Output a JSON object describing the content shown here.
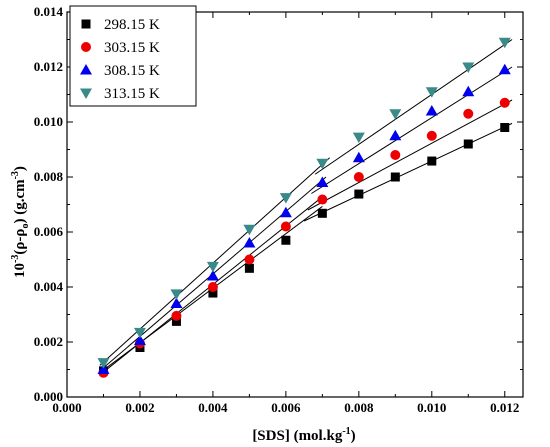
{
  "chart_data": {
    "type": "scatter",
    "xlabel": "[SDS] (mol.kg",
    "xlabel_sup": "-1",
    "xlabel_end": ")",
    "ylabel_pre": "10",
    "ylabel_sup": "-3",
    "ylabel_mid": "(ρ-ρ",
    "ylabel_sub": "o",
    "ylabel_post": ") (g.cm",
    "ylabel_sup2": "-3",
    "ylabel_end": ")",
    "xlim": [
      0.0,
      0.0125
    ],
    "ylim": [
      0.0,
      0.014
    ],
    "xticks": [
      "0.000",
      "0.002",
      "0.004",
      "0.006",
      "0.008",
      "0.010",
      "0.012"
    ],
    "xtick_values": [
      0.0,
      0.002,
      0.004,
      0.006,
      0.008,
      0.01,
      0.012
    ],
    "yticks": [
      "0.000",
      "0.002",
      "0.004",
      "0.006",
      "0.008",
      "0.010",
      "0.012",
      "0.014"
    ],
    "ytick_values": [
      0.0,
      0.002,
      0.004,
      0.006,
      0.008,
      0.01,
      0.012,
      0.014
    ],
    "grid": false,
    "legend_position": "top-left",
    "x": [
      0.001,
      0.002,
      0.003,
      0.004,
      0.005,
      0.006,
      0.007,
      0.008,
      0.009,
      0.01,
      0.011,
      0.012
    ],
    "series": [
      {
        "name": "298.15 K",
        "marker": "square",
        "color": "#000000",
        "values": [
          0.00095,
          0.0018,
          0.00275,
          0.00378,
          0.00468,
          0.0057,
          0.00668,
          0.00738,
          0.008,
          0.00858,
          0.0092,
          0.0098
        ],
        "fit_pre": [
          [
            0.0009,
            0.00088
          ],
          [
            0.007,
            0.00693
          ]
        ],
        "fit_post": [
          [
            0.0065,
            0.0064
          ],
          [
            0.0122,
            0.00995
          ]
        ]
      },
      {
        "name": "303.15 K",
        "marker": "circle",
        "color": "#ee0000",
        "values": [
          0.00088,
          0.00195,
          0.00295,
          0.004,
          0.005,
          0.0062,
          0.00718,
          0.008,
          0.0088,
          0.0095,
          0.0103,
          0.0107
        ],
        "fit_pre": [
          [
            0.0009,
            0.0008
          ],
          [
            0.007,
            0.00728
          ]
        ],
        "fit_post": [
          [
            0.0066,
            0.0068
          ],
          [
            0.0122,
            0.0108
          ]
        ]
      },
      {
        "name": "308.15 K",
        "marker": "triangle-up",
        "color": "#0000ee",
        "values": [
          0.001,
          0.00205,
          0.0034,
          0.0044,
          0.0056,
          0.0067,
          0.0078,
          0.0087,
          0.0095,
          0.0104,
          0.0111,
          0.0119
        ],
        "fit_pre": [
          [
            0.0009,
            0.00095
          ],
          [
            0.0071,
            0.008
          ]
        ],
        "fit_post": [
          [
            0.0067,
            0.0074
          ],
          [
            0.0122,
            0.012
          ]
        ]
      },
      {
        "name": "313.15 K",
        "marker": "triangle-down",
        "color": "#3a8a8a",
        "values": [
          0.00125,
          0.00235,
          0.00375,
          0.00475,
          0.0061,
          0.00725,
          0.0085,
          0.00945,
          0.0103,
          0.0111,
          0.012,
          0.0129
        ],
        "fit_pre": [
          [
            0.0009,
            0.00115
          ],
          [
            0.0072,
            0.0087
          ]
        ],
        "fit_post": [
          [
            0.0068,
            0.0081
          ],
          [
            0.0122,
            0.013
          ]
        ]
      }
    ]
  }
}
